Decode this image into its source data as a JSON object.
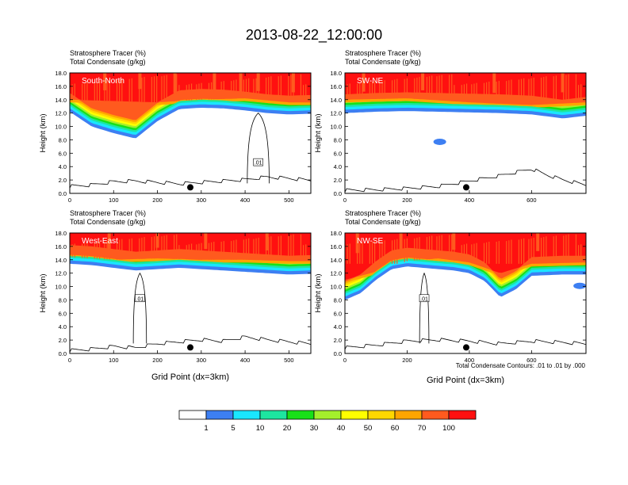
{
  "page": {
    "title": "2013-08-22_12:00:00",
    "xlabel": "Grid Point (dx=3km)",
    "contour_note": "Total Condensate Contours: .01 to .01 by .000"
  },
  "colors": {
    "bins": [
      "#ffffff",
      "#3d7ff2",
      "#1ae6ff",
      "#1de6a0",
      "#18e018",
      "#a4ef2c",
      "#ffff00",
      "#ffd700",
      "#ffa500",
      "#ff5a1e",
      "#ff1010"
    ]
  },
  "colorbar": {
    "labels": [
      "1",
      "5",
      "10",
      "20",
      "30",
      "40",
      "50",
      "60",
      "70",
      "100"
    ]
  },
  "chart_data": [
    {
      "type": "filled-contour",
      "name": "South-North",
      "subtitle1": "Stratosphere Tracer   (%)",
      "subtitle2": "Total Condensate   (g/kg)",
      "ylabel": "Height (km)",
      "xlim": [
        0,
        550
      ],
      "ylim": [
        0,
        18
      ],
      "xticks": [
        "0",
        "100",
        "200",
        "300",
        "400",
        "500"
      ],
      "yticks": [
        "0.0",
        "2.0",
        "4.0",
        "6.0",
        "8.0",
        "10.0",
        "12.0",
        "14.0",
        "16.0",
        "18.0"
      ],
      "contour_label": ".01",
      "marker_x": 275,
      "terrain": [
        [
          0,
          0.8
        ],
        [
          50,
          1.0
        ],
        [
          100,
          1.5
        ],
        [
          150,
          1.6
        ],
        [
          200,
          1.4
        ],
        [
          250,
          1.2
        ],
        [
          300,
          1.4
        ],
        [
          350,
          1.6
        ],
        [
          400,
          1.8
        ],
        [
          450,
          2.2
        ],
        [
          500,
          2.0
        ],
        [
          550,
          1.7
        ]
      ],
      "tracer_base": [
        [
          0,
          12.2
        ],
        [
          50,
          10.0
        ],
        [
          100,
          9.0
        ],
        [
          150,
          8.2
        ],
        [
          200,
          10.8
        ],
        [
          250,
          12.6
        ],
        [
          300,
          12.8
        ],
        [
          350,
          12.7
        ],
        [
          400,
          12.4
        ],
        [
          450,
          12.0
        ],
        [
          500,
          11.8
        ],
        [
          550,
          11.9
        ]
      ],
      "red_base": [
        [
          0,
          14.0
        ],
        [
          100,
          13.8
        ],
        [
          200,
          13.6
        ],
        [
          300,
          14.0
        ],
        [
          400,
          14.2
        ],
        [
          500,
          13.6
        ],
        [
          550,
          13.6
        ]
      ],
      "spikes": [
        [
          80,
          15.4
        ],
        [
          160,
          15.6
        ],
        [
          240,
          15.0
        ],
        [
          330,
          15.2
        ],
        [
          390,
          15.0
        ],
        [
          430,
          15.3
        ],
        [
          510,
          15.1
        ]
      ],
      "blobs": []
    },
    {
      "type": "filled-contour",
      "name": "SW-NE",
      "subtitle1": "Stratosphere Tracer   (%)",
      "subtitle2": "Total Condensate   (g/kg)",
      "ylabel": "Height (km)",
      "xlim": [
        0,
        775
      ],
      "ylim": [
        0,
        18
      ],
      "xticks": [
        "0",
        "200",
        "400",
        "600"
      ],
      "yticks": [
        "0.0",
        "2.0",
        "4.0",
        "6.0",
        "8.0",
        "10.0",
        "12.0",
        "14.0",
        "16.0",
        "18.0"
      ],
      "contour_label": "",
      "marker_x": 390,
      "terrain": [
        [
          0,
          0.2
        ],
        [
          100,
          0.3
        ],
        [
          200,
          0.5
        ],
        [
          300,
          0.8
        ],
        [
          400,
          1.6
        ],
        [
          500,
          2.4
        ],
        [
          600,
          3.4
        ],
        [
          650,
          2.5
        ],
        [
          700,
          1.8
        ],
        [
          775,
          1.0
        ]
      ],
      "tracer_base": [
        [
          0,
          12.0
        ],
        [
          100,
          12.2
        ],
        [
          200,
          12.3
        ],
        [
          300,
          12.2
        ],
        [
          400,
          12.1
        ],
        [
          500,
          12.0
        ],
        [
          600,
          11.8
        ],
        [
          700,
          11.2
        ],
        [
          775,
          11.6
        ]
      ],
      "red_base": [
        [
          0,
          14.0
        ],
        [
          200,
          14.2
        ],
        [
          400,
          13.6
        ],
        [
          600,
          13.2
        ],
        [
          775,
          13.6
        ]
      ],
      "spikes": [
        [
          60,
          15.2
        ],
        [
          250,
          15.4
        ],
        [
          480,
          15.0
        ],
        [
          700,
          15.1
        ]
      ],
      "blobs": [
        [
          305,
          7.7
        ]
      ]
    },
    {
      "type": "filled-contour",
      "name": "West-East",
      "subtitle1": "Stratosphere Tracer   (%)",
      "subtitle2": "Total Condensate   (g/kg)",
      "ylabel": "Height (km)",
      "xlim": [
        0,
        550
      ],
      "ylim": [
        0,
        18
      ],
      "xticks": [
        "0",
        "100",
        "200",
        "300",
        "400",
        "500"
      ],
      "yticks": [
        "0.0",
        "2.0",
        "4.0",
        "6.0",
        "8.0",
        "10.0",
        "12.0",
        "14.0",
        "16.0",
        "18.0"
      ],
      "contour_label": ".01",
      "marker_x": 275,
      "terrain": [
        [
          0,
          0.2
        ],
        [
          50,
          0.4
        ],
        [
          100,
          0.8
        ],
        [
          150,
          0.6
        ],
        [
          200,
          1.2
        ],
        [
          250,
          1.5
        ],
        [
          300,
          1.8
        ],
        [
          350,
          1.6
        ],
        [
          400,
          2.2
        ],
        [
          450,
          1.8
        ],
        [
          500,
          1.5
        ],
        [
          550,
          1.2
        ]
      ],
      "tracer_base": [
        [
          0,
          13.4
        ],
        [
          50,
          13.2
        ],
        [
          100,
          12.8
        ],
        [
          150,
          12.4
        ],
        [
          200,
          12.6
        ],
        [
          250,
          12.8
        ],
        [
          300,
          12.6
        ],
        [
          350,
          12.4
        ],
        [
          400,
          12.2
        ],
        [
          450,
          12.0
        ],
        [
          500,
          11.8
        ],
        [
          550,
          11.9
        ]
      ],
      "red_base": [
        [
          0,
          14.4
        ],
        [
          100,
          14.0
        ],
        [
          200,
          14.2
        ],
        [
          300,
          14.0
        ],
        [
          400,
          14.0
        ],
        [
          500,
          13.8
        ],
        [
          550,
          13.8
        ]
      ],
      "spikes": [
        [
          90,
          15.6
        ],
        [
          200,
          15.8
        ],
        [
          310,
          15.6
        ],
        [
          450,
          15.4
        ]
      ],
      "blobs": []
    },
    {
      "type": "filled-contour",
      "name": "NW-SE",
      "subtitle1": "Stratosphere Tracer   (%)",
      "subtitle2": "Total Condensate   (g/kg)",
      "ylabel": "Height (km)",
      "xlim": [
        0,
        775
      ],
      "ylim": [
        0,
        18
      ],
      "xticks": [
        "0",
        "200",
        "400",
        "600"
      ],
      "yticks": [
        "0.0",
        "2.0",
        "4.0",
        "6.0",
        "8.0",
        "10.0",
        "12.0",
        "14.0",
        "16.0",
        "18.0"
      ],
      "contour_label": ".01",
      "marker_x": 390,
      "terrain": [
        [
          0,
          0.6
        ],
        [
          100,
          1.0
        ],
        [
          200,
          1.6
        ],
        [
          300,
          1.8
        ],
        [
          400,
          1.6
        ],
        [
          500,
          1.2
        ],
        [
          600,
          1.6
        ],
        [
          700,
          1.4
        ],
        [
          775,
          1.2
        ]
      ],
      "tracer_base": [
        [
          0,
          8.0
        ],
        [
          50,
          9.0
        ],
        [
          100,
          11.0
        ],
        [
          150,
          12.6
        ],
        [
          200,
          13.0
        ],
        [
          250,
          12.8
        ],
        [
          300,
          12.6
        ],
        [
          350,
          12.4
        ],
        [
          400,
          12.0
        ],
        [
          450,
          10.8
        ],
        [
          500,
          8.4
        ],
        [
          550,
          9.6
        ],
        [
          600,
          11.6
        ],
        [
          700,
          11.8
        ],
        [
          775,
          11.8
        ]
      ],
      "red_base": [
        [
          0,
          11.0
        ],
        [
          100,
          12.2
        ],
        [
          200,
          13.8
        ],
        [
          300,
          14.2
        ],
        [
          400,
          13.6
        ],
        [
          500,
          12.0
        ],
        [
          600,
          13.4
        ],
        [
          775,
          13.6
        ]
      ],
      "spikes": [
        [
          40,
          15.0
        ],
        [
          180,
          15.6
        ],
        [
          350,
          15.5
        ],
        [
          620,
          15.3
        ]
      ],
      "blobs": [
        [
          755,
          10.1
        ]
      ]
    }
  ]
}
